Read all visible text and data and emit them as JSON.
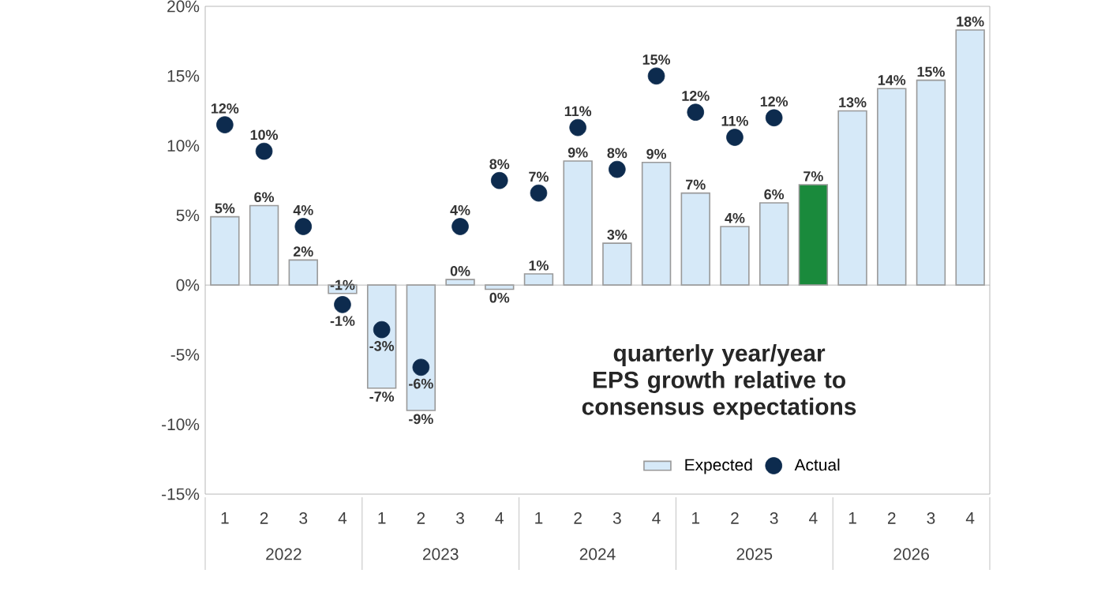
{
  "chart_data": {
    "type": "bar",
    "title": "quarterly year/year EPS growth relative to consensus expectations",
    "categories": [
      "1",
      "2",
      "3",
      "4",
      "1",
      "2",
      "3",
      "4",
      "1",
      "2",
      "3",
      "4",
      "1",
      "2",
      "3",
      "4",
      "1",
      "2",
      "3",
      "4"
    ],
    "annotations": [
      "2022",
      "2023",
      "2024",
      "2025",
      "2026"
    ],
    "series": [
      {
        "name": "Expected",
        "color": "#d6e9f8",
        "colors": [
          "#d6e9f8",
          "#d6e9f8",
          "#d6e9f8",
          "#d6e9f8",
          "#d6e9f8",
          "#d6e9f8",
          "#d6e9f8",
          "#d6e9f8",
          "#d6e9f8",
          "#d6e9f8",
          "#d6e9f8",
          "#d6e9f8",
          "#d6e9f8",
          "#d6e9f8",
          "#d6e9f8",
          "#1a8a3c",
          "#d6e9f8",
          "#d6e9f8",
          "#d6e9f8",
          "#d6e9f8"
        ],
        "values": [
          4.9,
          5.7,
          1.8,
          -0.6,
          -7.4,
          -9.0,
          0.4,
          -0.3,
          0.8,
          8.9,
          3.0,
          8.8,
          6.6,
          4.2,
          5.9,
          7.2,
          12.5,
          14.1,
          14.7,
          18.3
        ],
        "value_labels": [
          "5%",
          "6%",
          "2%",
          "-1%",
          "-7%",
          "-9%",
          "0%",
          "0%",
          "1%",
          "9%",
          "3%",
          "9%",
          "7%",
          "4%",
          "6%",
          "7%",
          "13%",
          "14%",
          "15%",
          "18%"
        ]
      },
      {
        "name": "Actual",
        "type": "scatter",
        "color": "#0d2b4e",
        "values": [
          11.5,
          9.6,
          4.2,
          -1.4,
          -3.2,
          -5.9,
          4.2,
          7.5,
          6.6,
          11.3,
          8.3,
          15.0,
          12.4,
          10.6,
          12.0,
          null,
          null,
          null,
          null,
          null
        ],
        "value_labels": [
          "12%",
          "10%",
          "4%",
          "-1%",
          "-3%",
          "-6%",
          "4%",
          "8%",
          "7%",
          "11%",
          "8%",
          "15%",
          "12%",
          "11%",
          "12%",
          null,
          null,
          null,
          null,
          null
        ]
      }
    ],
    "ylim": [
      -15,
      20
    ],
    "yticks": [
      {
        "value": -15,
        "label": "-15%"
      },
      {
        "value": -10,
        "label": "-10%"
      },
      {
        "value": -5,
        "label": "-5%"
      },
      {
        "value": 0,
        "label": "0%"
      },
      {
        "value": 5,
        "label": "5%"
      },
      {
        "value": 10,
        "label": "10%"
      },
      {
        "value": 15,
        "label": "15%"
      },
      {
        "value": 20,
        "label": "20%"
      }
    ],
    "marker": "circle",
    "legend": "bottom right"
  }
}
